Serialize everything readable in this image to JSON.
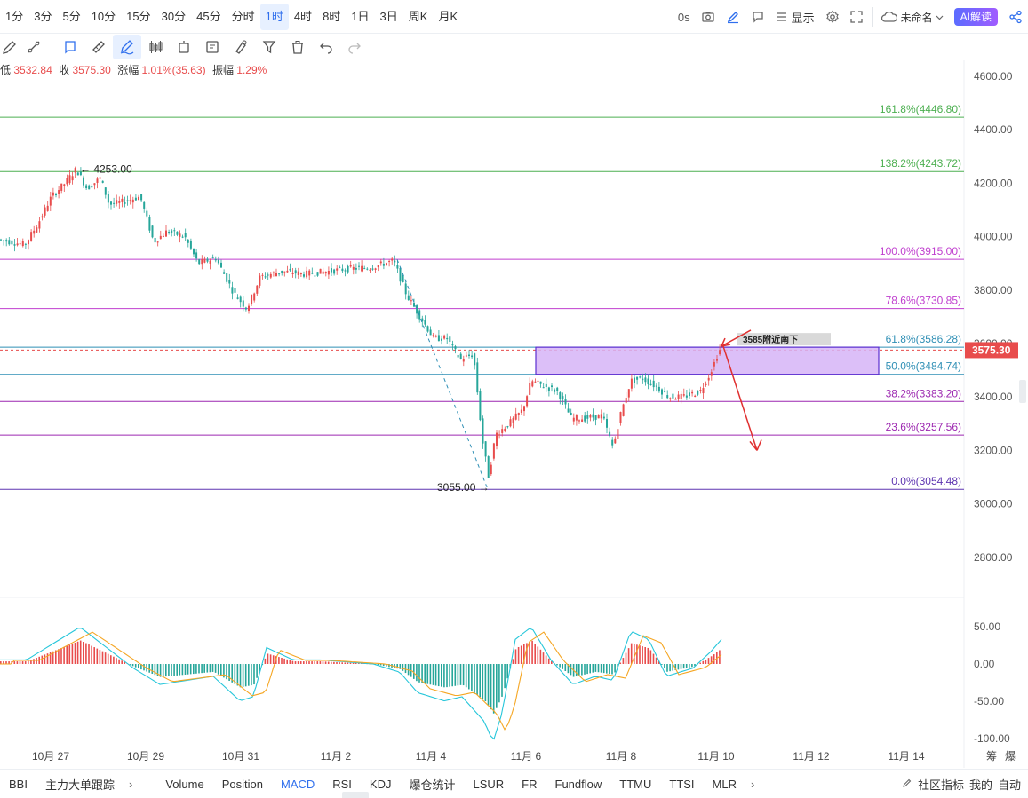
{
  "toolbar": {
    "timeframes": [
      "1分",
      "3分",
      "5分",
      "10分",
      "15分",
      "30分",
      "45分",
      "分时",
      "1时",
      "4时",
      "8时",
      "1日",
      "3日",
      "周K",
      "月K"
    ],
    "active_timeframe": "1时",
    "countdown": "0s",
    "display_label": "显示",
    "layout_name": "未命名",
    "ai_label": "AI解读"
  },
  "ohlc": {
    "low_label": "低",
    "low": "3532.84",
    "close_label": "收",
    "close": "3575.30",
    "change_label": "涨幅",
    "change": "1.01%(35.63)",
    "amplitude_label": "振幅",
    "amplitude": "1.29%"
  },
  "chart_data": {
    "type": "candlestick",
    "price_axis": {
      "ticks": [
        "4600.00",
        "4400.00",
        "4200.00",
        "4000.00",
        "3800.00",
        "3600.00",
        "3400.00",
        "3200.00",
        "3000.00",
        "2800.00"
      ],
      "range": [
        2730,
        4650
      ]
    },
    "date_axis": [
      "10月 27",
      "10月 29",
      "10月 31",
      "11月 2",
      "11月 4",
      "11月 6",
      "11月 8",
      "11月 10",
      "11月 12",
      "11月 14"
    ],
    "current_price": "3575.30",
    "fibonacci": [
      {
        "level": "161.8%",
        "price": 4446.8,
        "label": "161.8%(4446.80)",
        "color": "#4caf50"
      },
      {
        "level": "138.2%",
        "price": 4243.72,
        "label": "138.2%(4243.72)",
        "color": "#4caf50"
      },
      {
        "level": "100.0%",
        "price": 3915.0,
        "label": "100.0%(3915.00)",
        "color": "#c03fcf"
      },
      {
        "level": "78.6%",
        "price": 3730.85,
        "label": "78.6%(3730.85)",
        "color": "#c03fcf"
      },
      {
        "level": "61.8%",
        "price": 3586.28,
        "label": "61.8%(3586.28)",
        "color": "#2f8fb5"
      },
      {
        "level": "50.0%",
        "price": 3484.74,
        "label": "50.0%(3484.74)",
        "color": "#2f8fb5"
      },
      {
        "level": "38.2%",
        "price": 3383.2,
        "label": "38.2%(3383.20)",
        "color": "#9c27b0"
      },
      {
        "level": "23.6%",
        "price": 3257.56,
        "label": "23.6%(3257.56)",
        "color": "#9c27b0"
      },
      {
        "level": "0.0%",
        "price": 3054.48,
        "label": "0.0%(3054.48)",
        "color": "#5e35b1"
      }
    ],
    "high_annotation": "4253.00",
    "low_annotation": "3055.00",
    "zone_annotation": "3585附近南下",
    "macd_axis": [
      "50.00",
      "0.00",
      "-50.00",
      "-100.00"
    ]
  },
  "indicators": {
    "items": [
      "BBI",
      "主力大单跟踪",
      "Volume",
      "Position",
      "MACD",
      "RSI",
      "KDJ",
      "爆仓统计",
      "LSUR",
      "FR",
      "Fundflow",
      "TTMU",
      "TTSI",
      "MLR"
    ],
    "active": "MACD",
    "right_items": [
      "社区指标",
      "我的",
      "自动"
    ]
  },
  "side_labels": [
    "筹",
    "爆"
  ],
  "colors": {
    "up": "#e84c4c",
    "down": "#26a69a",
    "accent": "#2f6fed"
  }
}
